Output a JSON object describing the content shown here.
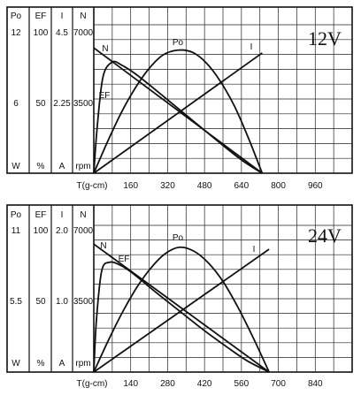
{
  "chart_data": [
    {
      "type": "line",
      "voltage_label": "12V",
      "left_axes": [
        {
          "header": "Po",
          "unit": "W",
          "top": "12",
          "mid": "6"
        },
        {
          "header": "EF",
          "unit": "%",
          "top": "100",
          "mid": "50"
        },
        {
          "header": "I",
          "unit": "A",
          "top": "4.5",
          "mid": "2.25"
        },
        {
          "header": "N",
          "unit": "rpm",
          "top": "7000",
          "mid": "3500"
        }
      ],
      "x_axis_label": "T(g-cm)",
      "x_ticks": [
        160,
        320,
        480,
        640,
        800,
        960
      ],
      "xlim": [
        0,
        1120
      ],
      "ylim_speed_rpm": [
        0,
        7000
      ],
      "grid": true,
      "series": [
        {
          "name": "N",
          "x": [
            0,
            730
          ],
          "y": [
            6000,
            0
          ]
        },
        {
          "name": "I",
          "x": [
            0,
            730
          ],
          "y": [
            0,
            3.7
          ]
        },
        {
          "name": "Po",
          "x": [
            0,
            60,
            120,
            180,
            240,
            300,
            365,
            430,
            490,
            550,
            610,
            670,
            730
          ],
          "y": [
            0,
            2.6,
            5.0,
            7.0,
            8.6,
            9.7,
            10.1,
            9.9,
            9.0,
            7.5,
            5.5,
            2.9,
            0
          ]
        },
        {
          "name": "EF",
          "x": [
            0,
            15,
            40,
            80,
            120,
            180,
            260,
            360,
            460,
            560,
            650,
            730
          ],
          "y": [
            0,
            32,
            66,
            76,
            74,
            68,
            58,
            45,
            32,
            19,
            8,
            0
          ]
        }
      ]
    },
    {
      "type": "line",
      "voltage_label": "24V",
      "left_axes": [
        {
          "header": "Po",
          "unit": "W",
          "top": "11",
          "mid": "5.5"
        },
        {
          "header": "EF",
          "unit": "%",
          "top": "100",
          "mid": "50"
        },
        {
          "header": "I",
          "unit": "A",
          "top": "2.0",
          "mid": "1.0"
        },
        {
          "header": "N",
          "unit": "rpm",
          "top": "7000",
          "mid": "3500"
        }
      ],
      "x_axis_label": "T(g-cm)",
      "x_ticks": [
        140,
        280,
        420,
        560,
        700,
        840
      ],
      "xlim": [
        0,
        980
      ],
      "ylim_speed_rpm": [
        0,
        7000
      ],
      "grid": true,
      "series": [
        {
          "name": "N",
          "x": [
            0,
            665
          ],
          "y": [
            6200,
            0
          ]
        },
        {
          "name": "I",
          "x": [
            0,
            665
          ],
          "y": [
            0,
            1.7
          ]
        },
        {
          "name": "Po",
          "x": [
            0,
            55,
            110,
            165,
            220,
            270,
            325,
            380,
            435,
            490,
            545,
            605,
            665
          ],
          "y": [
            0,
            2.4,
            4.6,
            6.5,
            8.0,
            9.0,
            9.5,
            9.2,
            8.3,
            6.9,
            5.0,
            2.6,
            0
          ]
        },
        {
          "name": "EF",
          "x": [
            0,
            10,
            30,
            60,
            100,
            150,
            230,
            320,
            410,
            500,
            580,
            665
          ],
          "y": [
            0,
            36,
            70,
            76,
            74,
            68,
            56,
            43,
            30,
            18,
            8,
            0
          ]
        }
      ]
    }
  ]
}
